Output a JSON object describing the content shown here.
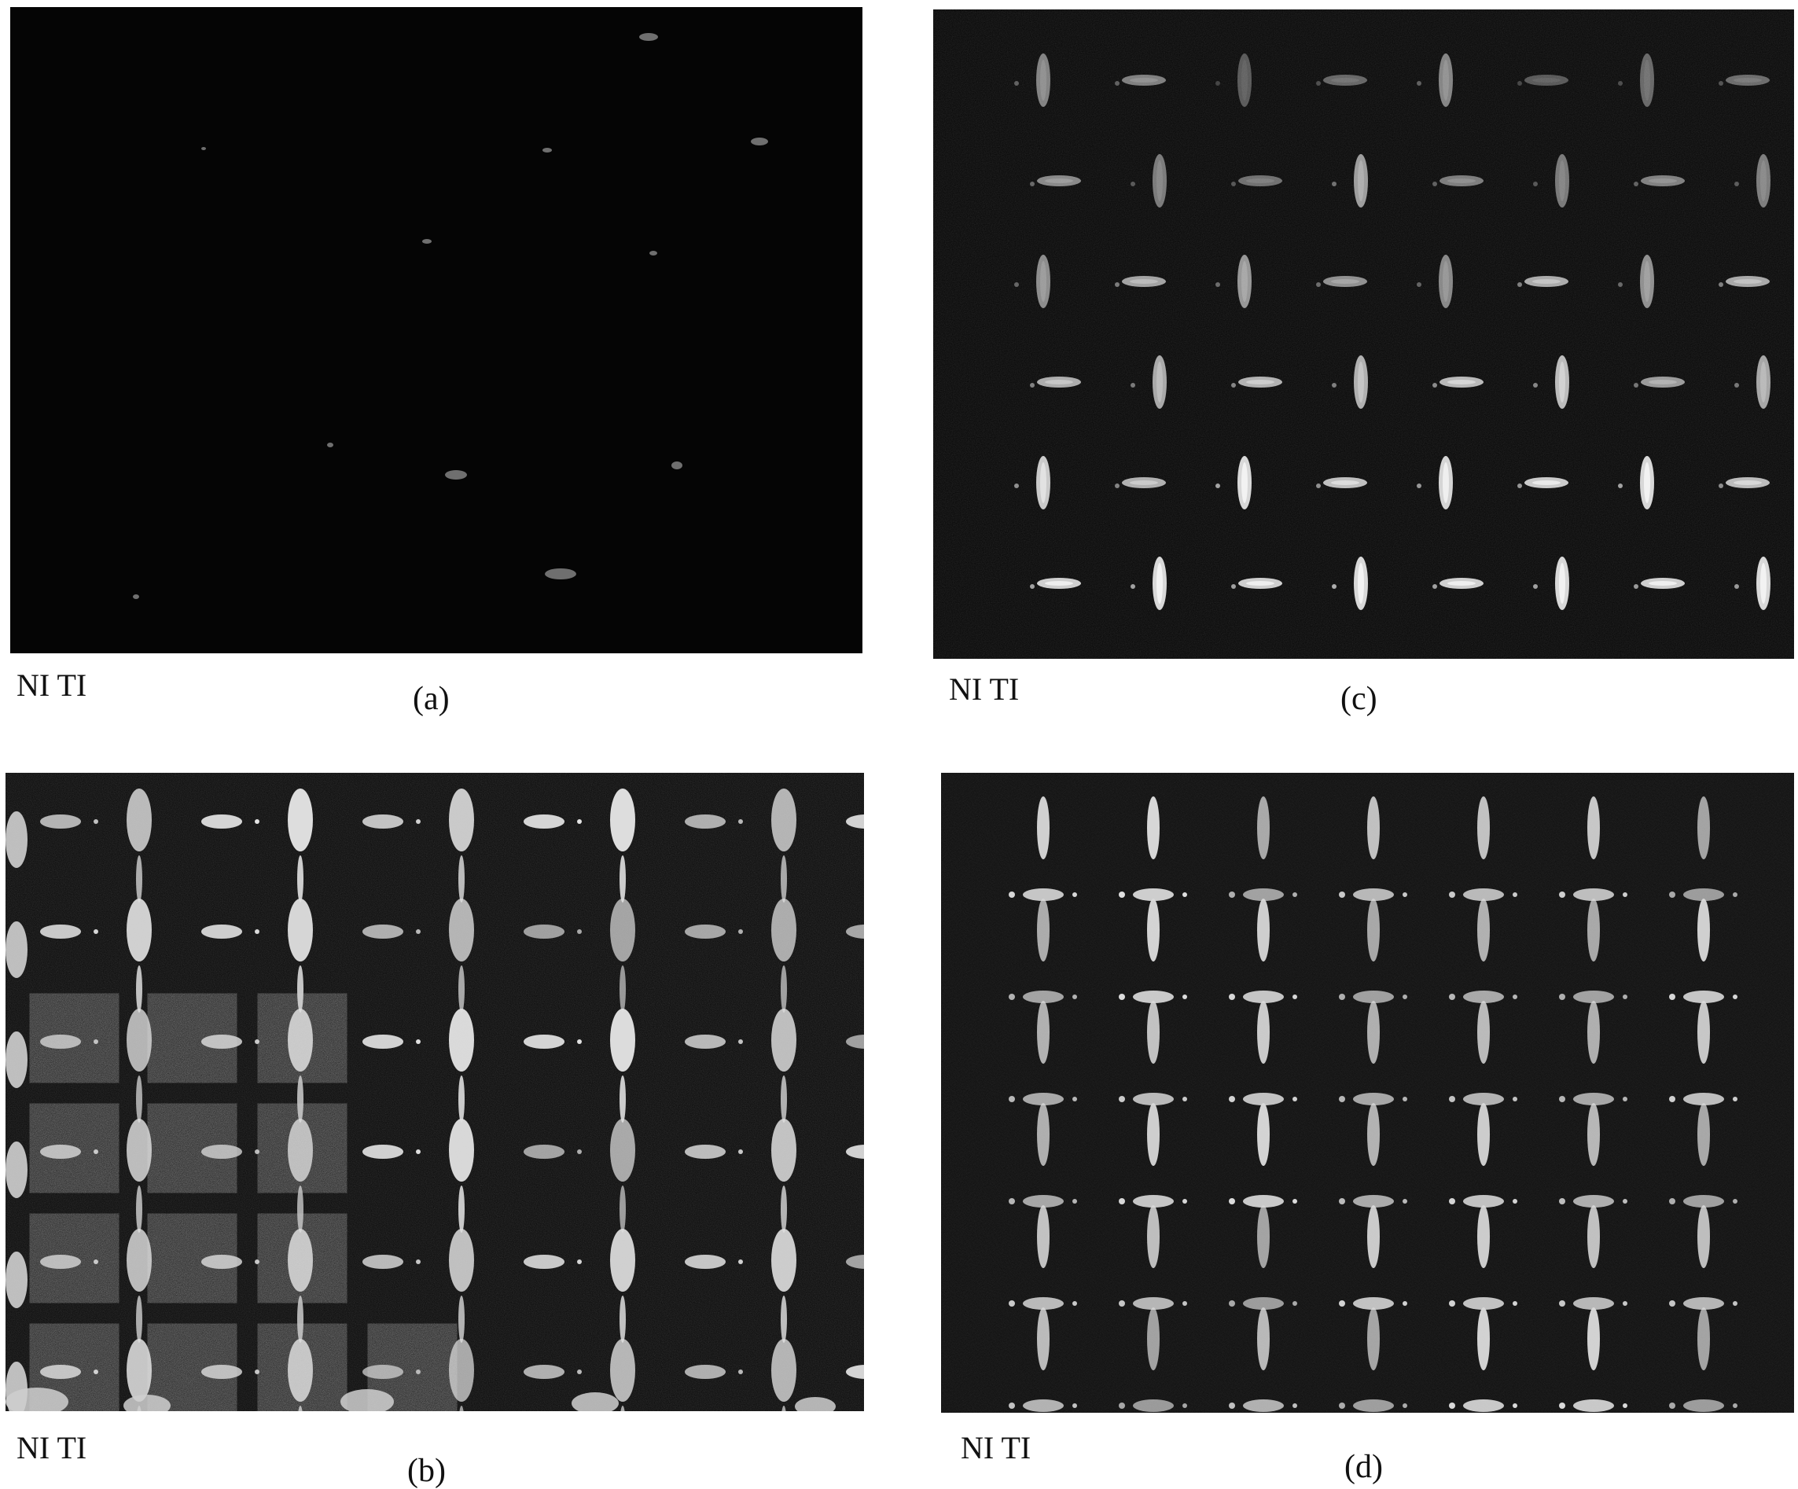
{
  "panels": [
    {
      "id": "a",
      "watermark": "NI TI",
      "caption": "(a)"
    },
    {
      "id": "c",
      "watermark": "NI TI",
      "caption": "(c)"
    },
    {
      "id": "b",
      "watermark": "NI TI",
      "caption": "(b)"
    },
    {
      "id": "d",
      "watermark": "NI TI",
      "caption": "(d)"
    }
  ],
  "colors": {
    "photo_background": "#050505",
    "spot_bright": "#e6e6e6",
    "spot_mid": "#9a9a9a",
    "patch": "#6e6e6e"
  }
}
